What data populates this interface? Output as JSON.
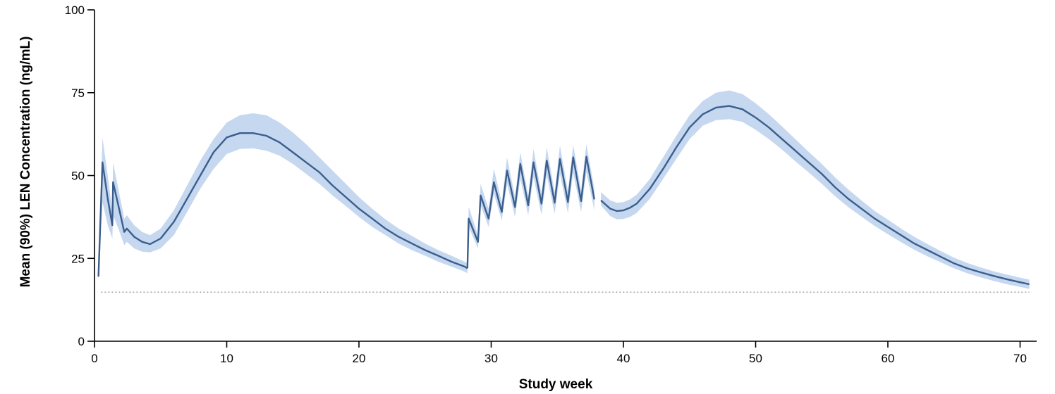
{
  "chart_data": {
    "type": "line",
    "title": "",
    "xlabel": "Study week",
    "ylabel": "Mean (90%) LEN Concentration (ng/mL)",
    "xlim": [
      0,
      71
    ],
    "ylim": [
      0,
      100
    ],
    "x_ticks": [
      0,
      10,
      20,
      30,
      40,
      50,
      60,
      70
    ],
    "y_ticks": [
      0,
      25,
      50,
      75,
      100
    ],
    "grid": false,
    "legend": "none",
    "colors": {
      "mean_line": "#3b5e8c",
      "band": "#c5d8f0",
      "reference_line": "#a6a6a6"
    },
    "reference_line": {
      "y": 14.8,
      "x_start": 0.5,
      "x_end": 70.7,
      "style": "dotted"
    },
    "series": [
      {
        "name": "",
        "x": [
          0.3,
          0.6,
          1.0,
          1.35,
          1.4,
          1.8,
          2.25,
          2.45,
          3.0,
          3.6,
          4.2,
          5.0,
          6.0,
          7.0,
          8.0,
          9.0,
          10.0,
          11.0,
          12.0,
          13.0,
          14.0,
          15.0,
          16.0,
          17.0,
          18.0,
          19.0,
          20.0,
          21.0,
          22.0,
          23.0,
          24.0,
          25.0,
          26.0,
          27.0,
          28.0,
          28.2
        ],
        "y": [
          19.5,
          54,
          43,
          35,
          48,
          41,
          33,
          34,
          31.5,
          30,
          29.3,
          31,
          36,
          43,
          50,
          57,
          61.5,
          62.8,
          62.8,
          62,
          60,
          57,
          54,
          51,
          47,
          43.5,
          40,
          37,
          34,
          31.5,
          29.5,
          27.5,
          25.8,
          24,
          22.5,
          22
        ],
        "lower": [
          18.5,
          42,
          35,
          31,
          38,
          34,
          29,
          30,
          28,
          27,
          26.8,
          28,
          32,
          39,
          46,
          52,
          56.5,
          58,
          58.2,
          57.5,
          56,
          53.5,
          50.5,
          47.5,
          44,
          40.8,
          37.5,
          34.5,
          32,
          29.5,
          27.5,
          25.8,
          24,
          22.5,
          21,
          20.5
        ],
        "upper": [
          20.5,
          61.5,
          50,
          39,
          54,
          46,
          37,
          38,
          35,
          33,
          32,
          34,
          39.5,
          47,
          54.5,
          61,
          66,
          68.2,
          68.8,
          68.2,
          66,
          63,
          59.5,
          55.5,
          51.5,
          47.5,
          43.5,
          40,
          36.8,
          34,
          31.8,
          29.5,
          27.5,
          25.8,
          24,
          23.5
        ]
      },
      {
        "name": "",
        "x": [
          28.2,
          28.3,
          29.0,
          29.2,
          29.8,
          30.2,
          30.8,
          31.2,
          31.8,
          32.2,
          32.8,
          33.2,
          33.8,
          34.2,
          34.8,
          35.2,
          35.8,
          36.2,
          36.8,
          37.2,
          37.8
        ],
        "y": [
          22,
          37,
          30,
          44,
          37,
          48,
          39,
          51.5,
          40.5,
          53.5,
          41,
          54,
          41.5,
          54.5,
          41.8,
          55,
          42,
          55.5,
          42.3,
          55.7,
          42.8
        ],
        "lower": [
          20.5,
          34.5,
          28,
          41,
          34.5,
          44.5,
          36.5,
          47.5,
          37.5,
          49,
          38,
          49.5,
          38.2,
          50,
          38.5,
          50.5,
          38.7,
          50.8,
          39,
          51,
          39.5
        ],
        "upper": [
          23.5,
          40.5,
          32,
          47.5,
          40,
          52,
          42,
          55.5,
          43.5,
          57,
          44,
          58,
          44.5,
          58.5,
          45,
          59,
          45.3,
          59.2,
          45.6,
          59.5,
          46
        ]
      },
      {
        "name": "",
        "x": [
          38.3,
          39.0,
          39.5,
          40.0,
          40.5,
          41.0,
          42.0,
          43.0,
          44.0,
          45.0,
          46.0,
          47.0,
          48.0,
          49.0,
          50.0,
          51.0,
          52.0,
          53.0,
          54.0,
          55.0,
          56.0,
          57.0,
          58.0,
          59.0,
          60.0,
          61.0,
          62.0,
          63.0,
          64.0,
          65.0,
          66.0,
          67.0,
          68.0,
          69.0,
          70.0,
          70.7
        ],
        "y": [
          42.5,
          40,
          39.3,
          39.5,
          40.3,
          41.5,
          46,
          52,
          58.5,
          64.5,
          68.5,
          70.5,
          71,
          70,
          67.5,
          64.5,
          61,
          57.5,
          54,
          50.5,
          46.5,
          43,
          40,
          37,
          34.5,
          32,
          29.5,
          27.5,
          25.5,
          23.5,
          22,
          20.8,
          19.7,
          18.7,
          17.8,
          17.2
        ],
        "lower": [
          41,
          37.8,
          36.8,
          36.9,
          37.5,
          38.7,
          43,
          49,
          55,
          61,
          65,
          66.7,
          67,
          66.2,
          63.8,
          61,
          57.8,
          54.3,
          51,
          47.5,
          43.8,
          40.5,
          37.6,
          34.8,
          32.3,
          29.9,
          27.6,
          25.6,
          23.8,
          22,
          20.5,
          19.3,
          18.2,
          17.2,
          16.4,
          15.8
        ],
        "upper": [
          45,
          42.5,
          41.8,
          42,
          42.8,
          44.2,
          49,
          55.5,
          62,
          68.2,
          72.5,
          75,
          75.7,
          74.6,
          71.8,
          68.5,
          64.8,
          61,
          57.2,
          53.5,
          49.5,
          45.8,
          42.5,
          39.3,
          36.7,
          34,
          31.5,
          29.3,
          27.2,
          25.2,
          23.6,
          22.3,
          21.1,
          20.1,
          19.2,
          18.6
        ]
      }
    ]
  }
}
